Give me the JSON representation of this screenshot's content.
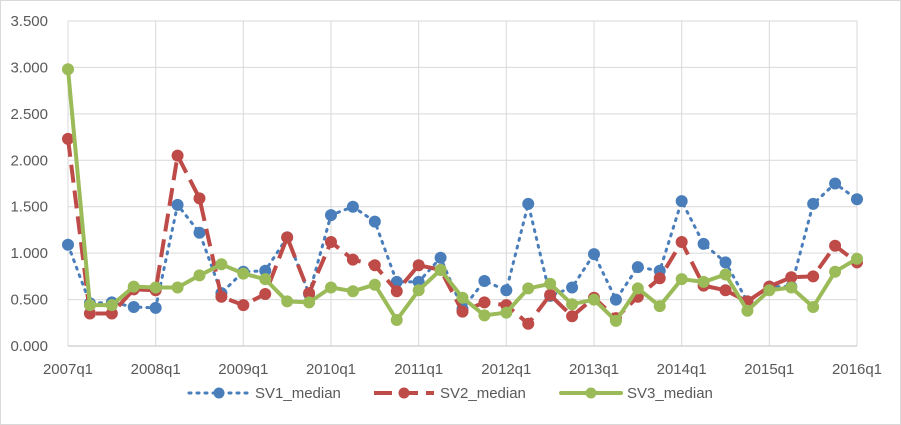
{
  "chart_data": {
    "type": "line",
    "title": "",
    "xlabel": "",
    "ylabel": "",
    "ylim": [
      0,
      3.5
    ],
    "ytick_step": 0.5,
    "ytick_labels": [
      "0.000",
      "0.500",
      "1.000",
      "1.500",
      "2.000",
      "2.500",
      "3.000",
      "3.500"
    ],
    "xtick_labels": [
      "2007q1",
      "2008q1",
      "2009q1",
      "2010q1",
      "2011q1",
      "2012q1",
      "2013q1",
      "2014q1",
      "2015q1",
      "2016q1"
    ],
    "x": [
      "2007q1",
      "2007q2",
      "2007q3",
      "2007q4",
      "2008q1",
      "2008q2",
      "2008q3",
      "2008q4",
      "2009q1",
      "2009q2",
      "2009q3",
      "2009q4",
      "2010q1",
      "2010q2",
      "2010q3",
      "2010q4",
      "2011q1",
      "2011q2",
      "2011q3",
      "2011q4",
      "2012q1",
      "2012q2",
      "2012q3",
      "2012q4",
      "2013q1",
      "2013q2",
      "2013q3",
      "2013q4",
      "2014q1",
      "2014q2",
      "2014q3",
      "2014q4",
      "2015q1",
      "2015q2",
      "2015q3",
      "2015q4",
      "2016q1"
    ],
    "grid": {
      "x": true,
      "y": true
    },
    "legend": "bottom",
    "series": [
      {
        "name": "SV1_median",
        "color": "#4a7ebb",
        "style": "dotted",
        "values": [
          1.09,
          0.46,
          0.47,
          0.42,
          0.41,
          1.52,
          1.22,
          0.57,
          0.8,
          0.81,
          1.17,
          0.56,
          1.41,
          1.5,
          1.34,
          0.69,
          0.69,
          0.95,
          0.4,
          0.7,
          0.6,
          1.53,
          0.54,
          0.63,
          0.99,
          0.5,
          0.85,
          0.81,
          1.56,
          1.1,
          0.9,
          0.48,
          0.64,
          0.64,
          1.53,
          1.75,
          1.58
        ]
      },
      {
        "name": "SV2_median",
        "color": "#be4b48",
        "style": "dashed",
        "values": [
          2.23,
          0.35,
          0.35,
          0.61,
          0.6,
          2.05,
          1.59,
          0.53,
          0.44,
          0.56,
          1.17,
          0.57,
          1.12,
          0.93,
          0.87,
          0.59,
          0.87,
          0.82,
          0.37,
          0.47,
          0.44,
          0.24,
          0.55,
          0.32,
          0.52,
          0.3,
          0.53,
          0.73,
          1.12,
          0.65,
          0.6,
          0.48,
          0.64,
          0.74,
          0.75,
          1.08,
          0.9
        ]
      },
      {
        "name": "SV3_median",
        "color": "#9bbb59",
        "style": "solid",
        "values": [
          2.98,
          0.44,
          0.44,
          0.64,
          0.63,
          0.63,
          0.76,
          0.88,
          0.78,
          0.72,
          0.48,
          0.47,
          0.63,
          0.59,
          0.66,
          0.28,
          0.6,
          0.82,
          0.52,
          0.33,
          0.36,
          0.62,
          0.67,
          0.45,
          0.5,
          0.27,
          0.62,
          0.43,
          0.72,
          0.69,
          0.77,
          0.38,
          0.6,
          0.63,
          0.42,
          0.8,
          0.94
        ]
      }
    ]
  }
}
